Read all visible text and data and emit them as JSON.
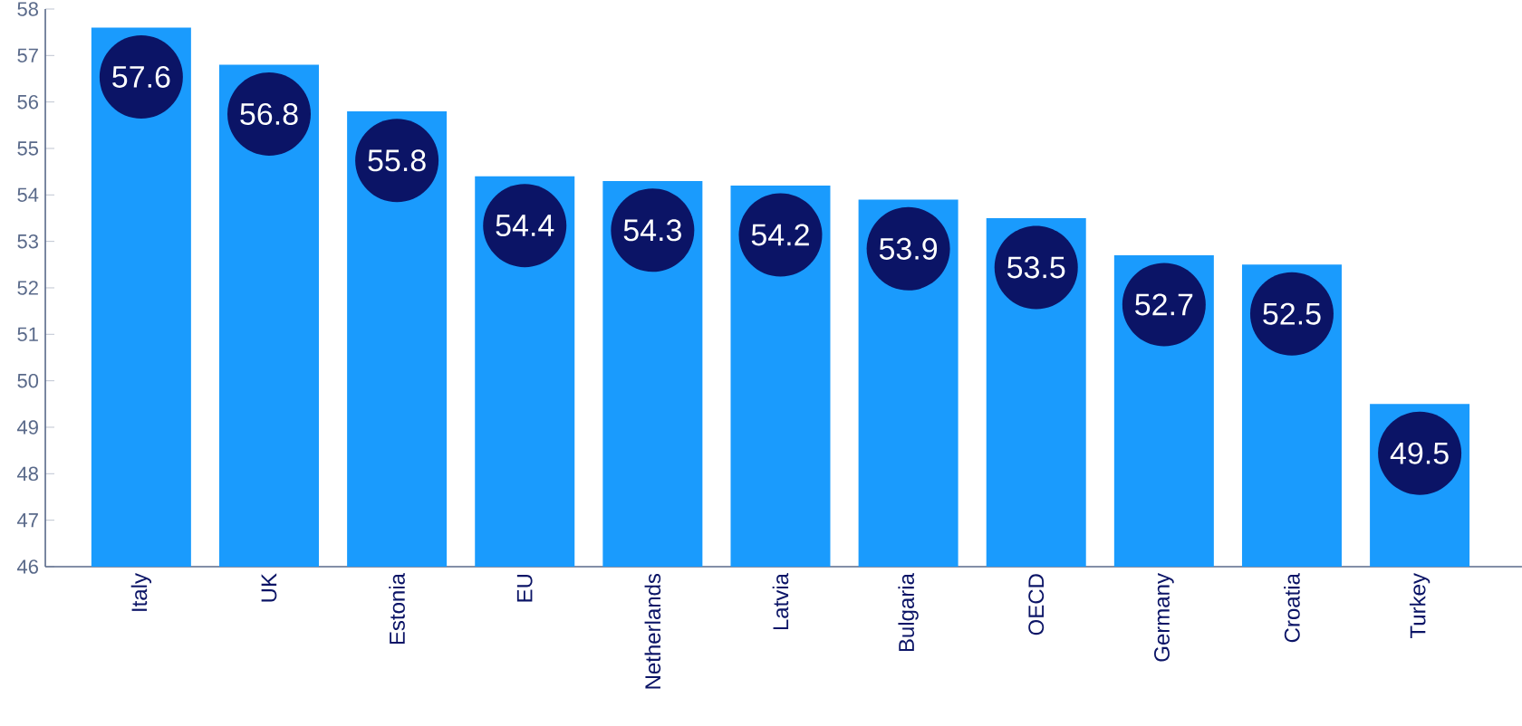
{
  "chart_data": {
    "type": "bar",
    "categories": [
      "Italy",
      "UK",
      "Estonia",
      "EU",
      "Netherlands",
      "Latvia",
      "Bulgaria",
      "OECD",
      "Germany",
      "Croatia",
      "Turkey"
    ],
    "values": [
      57.6,
      56.8,
      55.8,
      54.4,
      54.3,
      54.2,
      53.9,
      53.5,
      52.7,
      52.5,
      49.5
    ],
    "color": "#1a9bfd",
    "ylim": [
      46,
      58
    ],
    "yticks": [
      46,
      47,
      48,
      49,
      50,
      51,
      52,
      53,
      54,
      55,
      56,
      57,
      58
    ],
    "data_labels": true,
    "grid": false
  }
}
